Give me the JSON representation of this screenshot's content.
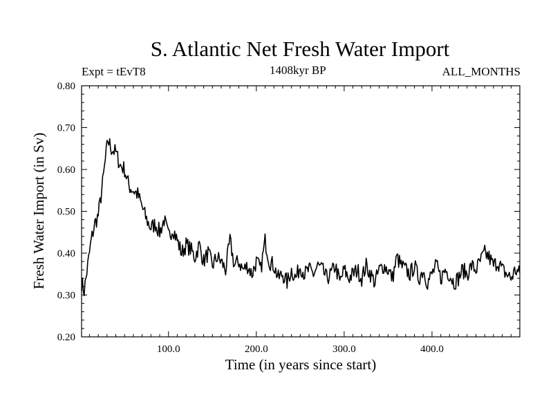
{
  "header": {
    "title": "S. Atlantic Net Fresh Water Import",
    "experiment": "Expt = tEvT8",
    "period": "1408kyr BP",
    "months": "ALL_MONTHS"
  },
  "chart_data": {
    "type": "line",
    "title": "S. Atlantic Net Fresh Water Import",
    "xlabel": "Time (in years since start)",
    "ylabel": "Fresh Water Import (in Sv)",
    "xlim": [
      1,
      500
    ],
    "ylim": [
      0.2,
      0.8
    ],
    "x_ticks": [
      {
        "value": 100,
        "label": "100.0"
      },
      {
        "value": 200,
        "label": "200.0"
      },
      {
        "value": 300,
        "label": "300.0"
      },
      {
        "value": 400,
        "label": "400.0"
      }
    ],
    "y_ticks": [
      {
        "value": 0.2,
        "label": "0.20"
      },
      {
        "value": 0.3,
        "label": "0.30"
      },
      {
        "value": 0.4,
        "label": "0.40"
      },
      {
        "value": 0.5,
        "label": "0.50"
      },
      {
        "value": 0.6,
        "label": "0.60"
      },
      {
        "value": 0.7,
        "label": "0.70"
      },
      {
        "value": 0.8,
        "label": "0.80"
      }
    ],
    "series": [
      {
        "name": "Net Fresh Water Import",
        "color": "#000000",
        "x": [
          1,
          4,
          8,
          12,
          16,
          20,
          24,
          28,
          31,
          35,
          40,
          45,
          50,
          55,
          60,
          65,
          70,
          75,
          80,
          85,
          90,
          95,
          100,
          105,
          110,
          115,
          120,
          125,
          130,
          135,
          140,
          145,
          150,
          155,
          160,
          165,
          170,
          175,
          180,
          185,
          190,
          195,
          200,
          205,
          210,
          215,
          220,
          225,
          230,
          235,
          240,
          245,
          250,
          255,
          260,
          265,
          270,
          275,
          280,
          285,
          290,
          295,
          300,
          305,
          310,
          315,
          320,
          325,
          330,
          335,
          340,
          345,
          350,
          355,
          360,
          365,
          370,
          375,
          380,
          385,
          390,
          395,
          400,
          405,
          410,
          415,
          420,
          425,
          430,
          435,
          440,
          445,
          450,
          455,
          460,
          465,
          470,
          475,
          480,
          485,
          490,
          495,
          500
        ],
        "y": [
          0.33,
          0.31,
          0.37,
          0.43,
          0.47,
          0.49,
          0.55,
          0.62,
          0.67,
          0.65,
          0.64,
          0.61,
          0.6,
          0.56,
          0.55,
          0.54,
          0.51,
          0.48,
          0.46,
          0.47,
          0.45,
          0.48,
          0.44,
          0.46,
          0.43,
          0.4,
          0.42,
          0.41,
          0.39,
          0.42,
          0.38,
          0.4,
          0.37,
          0.39,
          0.38,
          0.36,
          0.43,
          0.37,
          0.38,
          0.36,
          0.37,
          0.35,
          0.38,
          0.36,
          0.43,
          0.38,
          0.37,
          0.34,
          0.35,
          0.33,
          0.36,
          0.34,
          0.37,
          0.35,
          0.36,
          0.35,
          0.37,
          0.36,
          0.34,
          0.35,
          0.37,
          0.33,
          0.36,
          0.34,
          0.35,
          0.36,
          0.34,
          0.37,
          0.35,
          0.33,
          0.36,
          0.37,
          0.36,
          0.34,
          0.39,
          0.37,
          0.36,
          0.35,
          0.37,
          0.34,
          0.36,
          0.33,
          0.35,
          0.37,
          0.34,
          0.36,
          0.35,
          0.33,
          0.34,
          0.36,
          0.35,
          0.37,
          0.36,
          0.38,
          0.4,
          0.39,
          0.37,
          0.38,
          0.36,
          0.35,
          0.34,
          0.36,
          0.35
        ],
        "noise_amplitude": 0.02
      }
    ]
  }
}
